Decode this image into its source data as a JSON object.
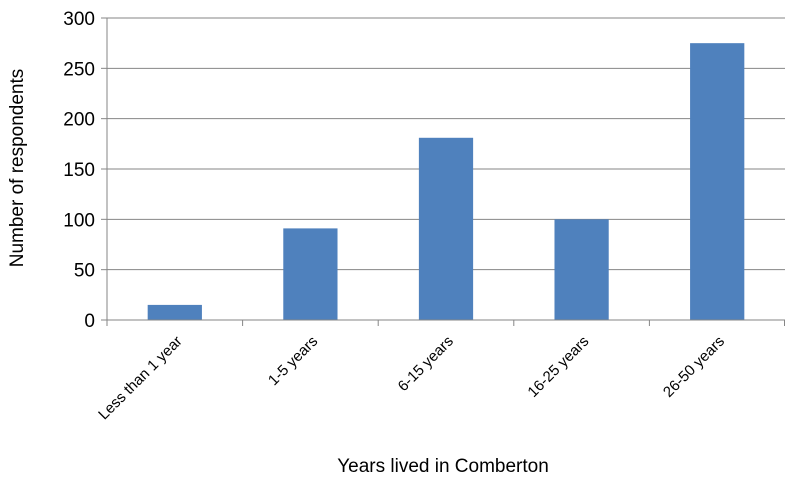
{
  "chart_data": {
    "type": "bar",
    "categories": [
      "Less than 1 year",
      "1-5 years",
      "6-15 years",
      "16-25 years",
      "26-50 years"
    ],
    "values": [
      15,
      91,
      181,
      100,
      275
    ],
    "title": "",
    "xlabel": "Years lived in Comberton",
    "ylabel": "Number of respondents",
    "ylim": [
      0,
      300
    ],
    "yticks": [
      0,
      50,
      100,
      150,
      200,
      250,
      300
    ],
    "grid": true,
    "bar_color": "#4F81BD",
    "grid_color": "#868686"
  }
}
